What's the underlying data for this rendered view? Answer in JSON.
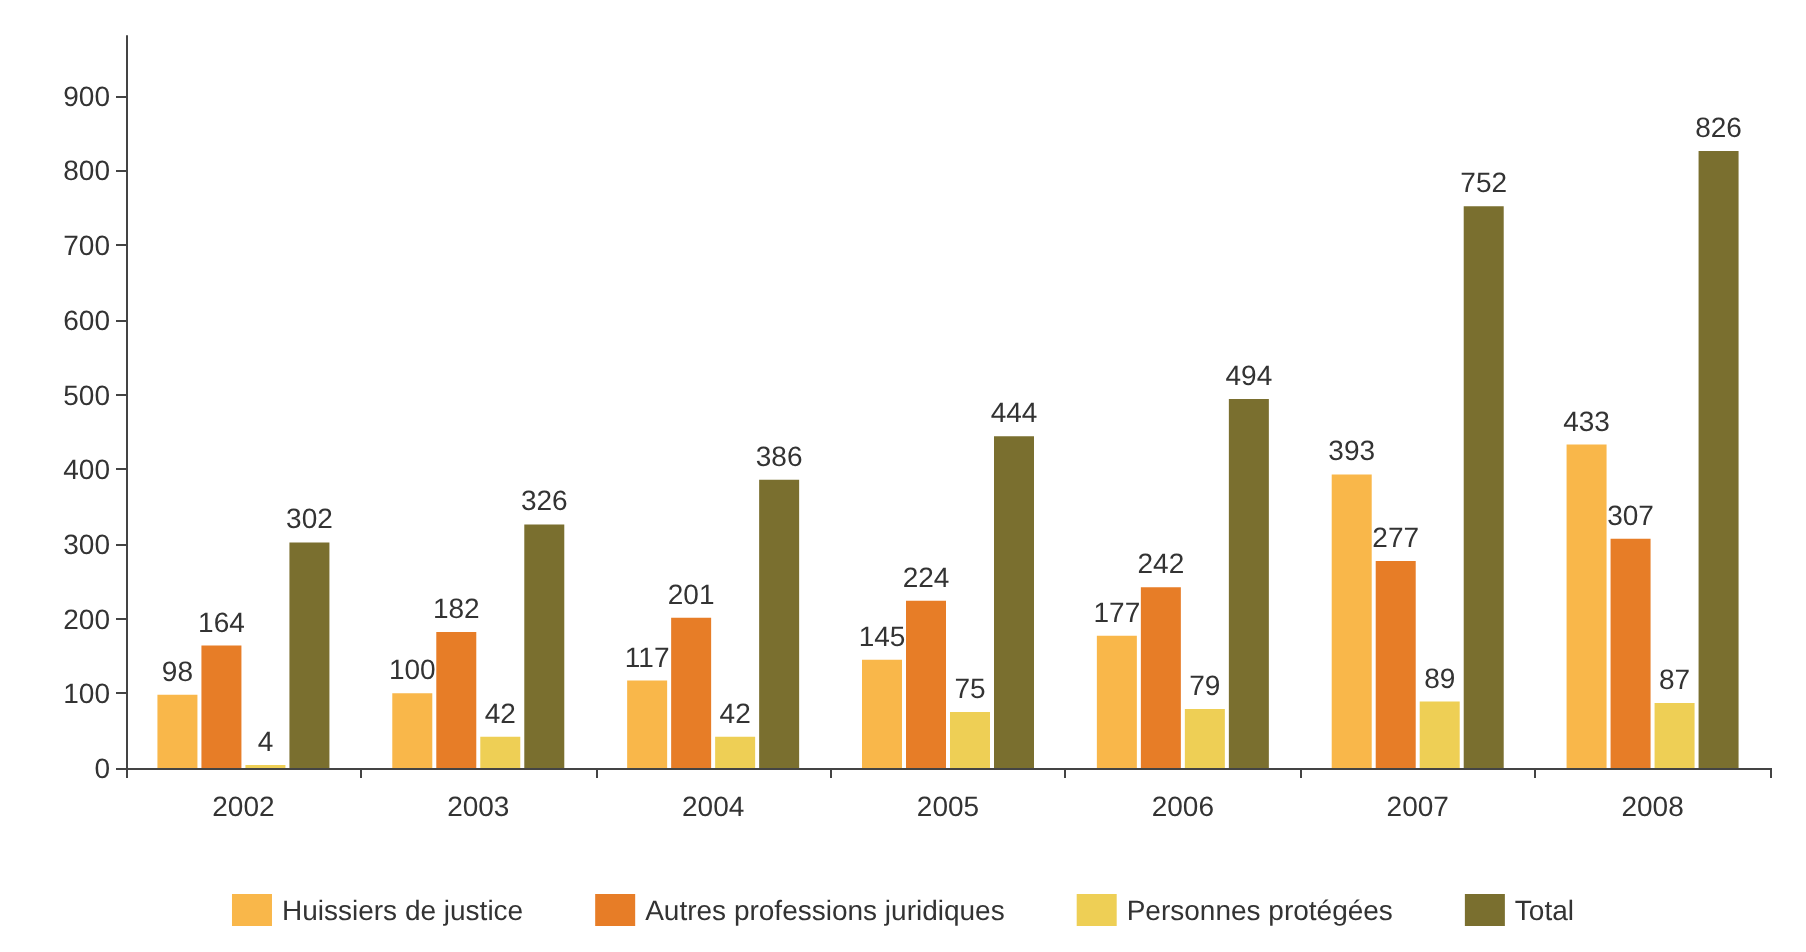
{
  "chart_data": {
    "type": "bar",
    "categories": [
      "2002",
      "2003",
      "2004",
      "2005",
      "2006",
      "2007",
      "2008"
    ],
    "series": [
      {
        "name": "Huissiers de justice",
        "color": "#f9b74a",
        "values": [
          98,
          100,
          117,
          145,
          177,
          393,
          433
        ]
      },
      {
        "name": "Autres professions juridiques",
        "color": "#e77d27",
        "values": [
          164,
          182,
          201,
          224,
          242,
          277,
          307
        ]
      },
      {
        "name": "Personnes protégées",
        "color": "#eecf55",
        "values": [
          4,
          42,
          42,
          75,
          79,
          89,
          87
        ]
      },
      {
        "name": "Total",
        "color": "#7a6f2f",
        "values": [
          302,
          326,
          386,
          444,
          494,
          752,
          826
        ]
      }
    ],
    "ylim": [
      0,
      980
    ],
    "yticks": [
      0,
      100,
      200,
      300,
      400,
      500,
      600,
      700,
      800,
      900
    ],
    "grid": false,
    "legend": "bottom",
    "data_labels": true
  }
}
